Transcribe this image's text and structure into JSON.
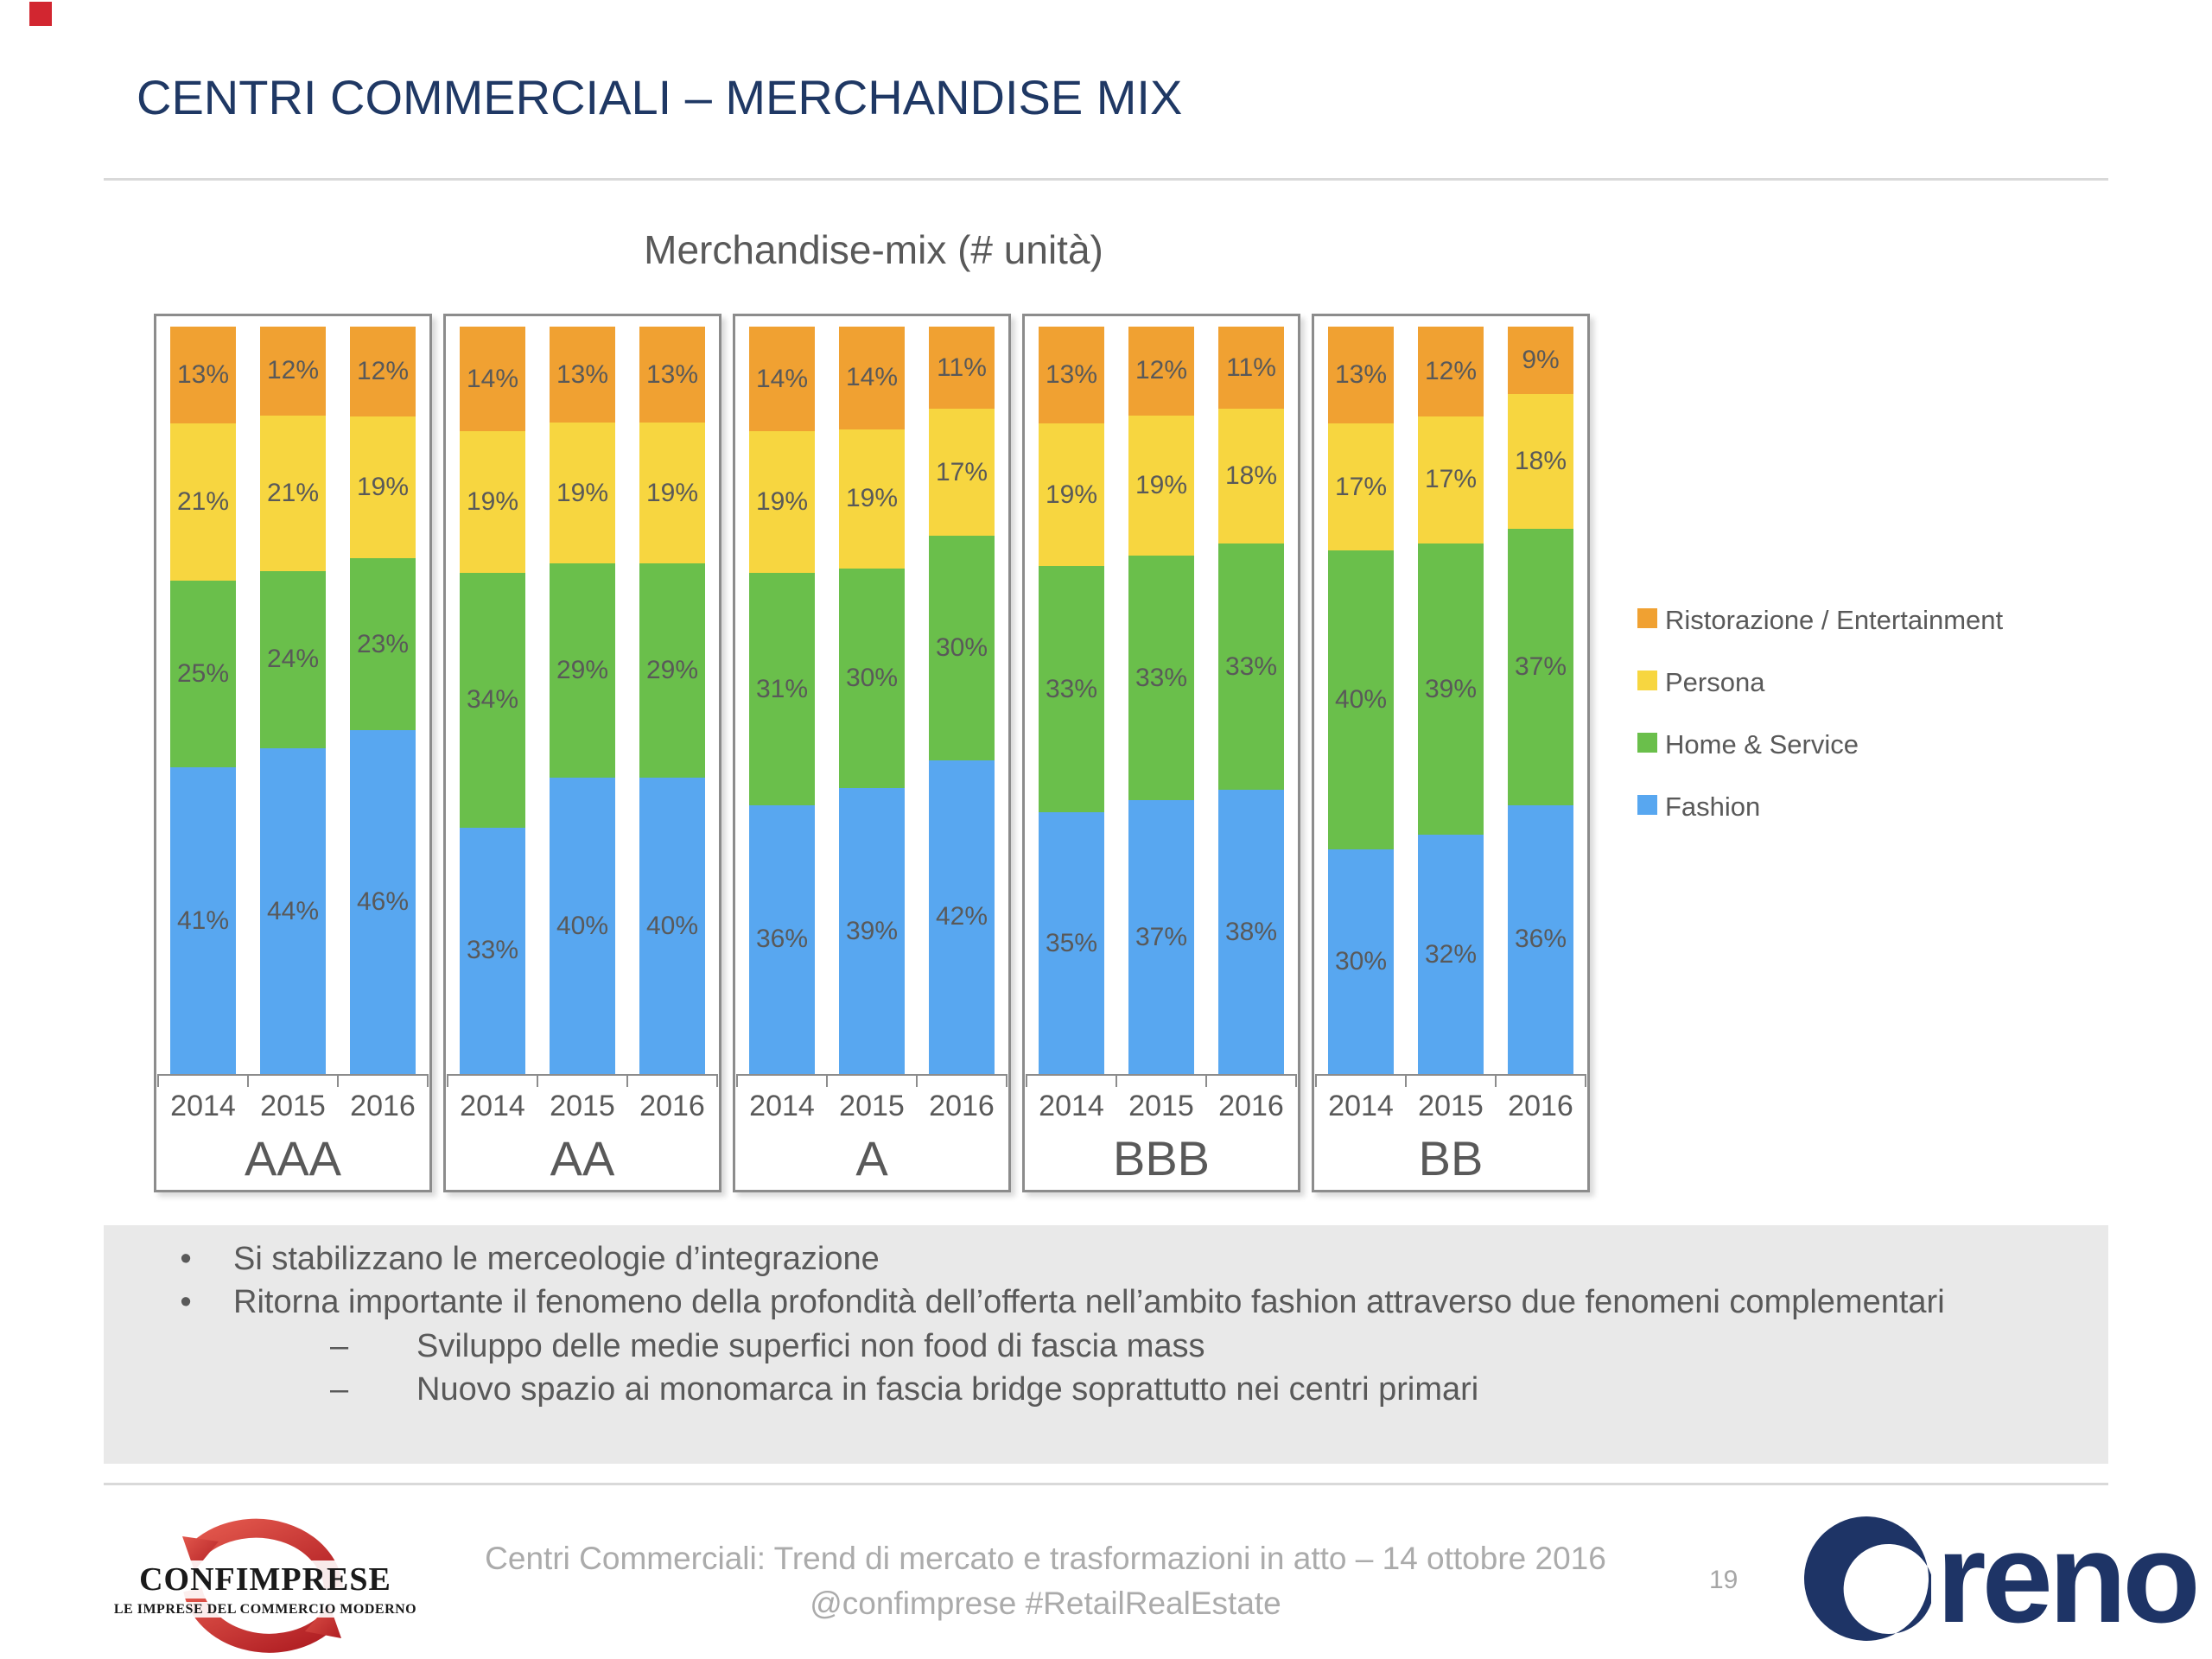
{
  "slide": {
    "title": "CENTRI COMMERCIALI – MERCHANDISE MIX"
  },
  "chart_data": {
    "type": "bar",
    "variant": "100-percent-stacked-column",
    "title": "Merchandise-mix (# unità)",
    "unit": "%",
    "groups": [
      "AAA",
      "AA",
      "A",
      "BBB",
      "BB"
    ],
    "years": [
      "2014",
      "2015",
      "2016"
    ],
    "series": [
      {
        "name": "Fashion",
        "color": "#58a7f0",
        "values": [
          [
            41,
            44,
            46
          ],
          [
            33,
            40,
            40
          ],
          [
            36,
            39,
            42
          ],
          [
            35,
            37,
            38
          ],
          [
            30,
            32,
            36
          ]
        ]
      },
      {
        "name": "Home & Service",
        "color": "#6abf4b",
        "values": [
          [
            25,
            24,
            23
          ],
          [
            34,
            29,
            29
          ],
          [
            31,
            30,
            30
          ],
          [
            33,
            33,
            33
          ],
          [
            40,
            39,
            37
          ]
        ]
      },
      {
        "name": "Persona",
        "color": "#f7d640",
        "values": [
          [
            21,
            21,
            19
          ],
          [
            19,
            19,
            19
          ],
          [
            19,
            19,
            17
          ],
          [
            19,
            19,
            18
          ],
          [
            17,
            17,
            18
          ]
        ]
      },
      {
        "name": "Ristorazione / Entertainment",
        "color": "#f0a132",
        "values": [
          [
            13,
            12,
            12
          ],
          [
            14,
            13,
            13
          ],
          [
            14,
            14,
            11
          ],
          [
            13,
            12,
            11
          ],
          [
            13,
            12,
            9
          ]
        ]
      }
    ],
    "legend": [
      {
        "label": "Ristorazione / Entertainment",
        "color": "#f0a132"
      },
      {
        "label": "Persona",
        "color": "#f7d640"
      },
      {
        "label": "Home & Service",
        "color": "#6abf4b"
      },
      {
        "label": "Fashion",
        "color": "#58a7f0"
      }
    ],
    "legend_position": "right"
  },
  "notes": {
    "bullets": [
      {
        "level": 1,
        "marker": "•",
        "text": "Si stabilizzano le merceologie d’integrazione"
      },
      {
        "level": 1,
        "marker": "•",
        "text": "Ritorna importante il fenomeno della profondità dell’offerta nell’ambito fashion attraverso due fenomeni complementari"
      },
      {
        "level": 2,
        "marker": "–",
        "text": "Sviluppo delle medie superfici non food di fascia mass"
      },
      {
        "level": 2,
        "marker": "–",
        "text": "Nuovo spazio ai monomarca in fascia bridge soprattutto nei centri primari"
      }
    ]
  },
  "footer": {
    "confimprese_name": "CONFIMPRESE",
    "confimprese_sub": "LE IMPRESE DEL COMMERCIO MODERNO",
    "center_line1": "Centri Commerciali: Trend di mercato e trasformazioni in atto – 14 ottobre 2016",
    "center_line2": "@confimprese #RetailRealEstate",
    "page_number": "19",
    "reno_text": "reno"
  }
}
